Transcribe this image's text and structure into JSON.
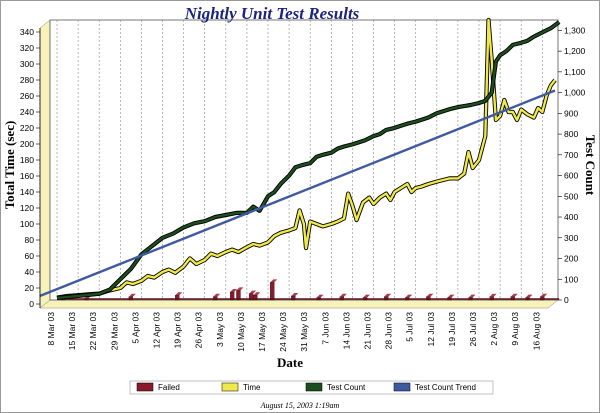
{
  "chart_data": {
    "type": "line",
    "title": "Nightly Unit Test Results",
    "xlabel": "Date",
    "ylabel_left": "Total Time (sec)",
    "ylabel_right": "Test Count",
    "ylim_left": [
      0,
      350
    ],
    "ylim_right": [
      0,
      1350
    ],
    "yticks_left": [
      0,
      20,
      40,
      60,
      80,
      100,
      120,
      140,
      160,
      180,
      200,
      220,
      240,
      260,
      280,
      300,
      320,
      340
    ],
    "yticks_right": [
      0,
      100,
      200,
      300,
      400,
      500,
      600,
      700,
      800,
      900,
      1000,
      1100,
      1200,
      1300
    ],
    "yticks_right_labels": [
      "0",
      "100",
      "200",
      "300",
      "400",
      "500",
      "600",
      "700",
      "800",
      "900",
      "1,000",
      "1,100",
      "1,200",
      "1,300"
    ],
    "x_categories": [
      "8 Mar 03",
      "15 Mar 03",
      "22 Mar 03",
      "29 Mar 03",
      "5 Apr 03",
      "12 Apr 03",
      "19 Apr 03",
      "26 Apr 03",
      "3 May 03",
      "10 May 03",
      "17 May 03",
      "24 May 03",
      "31 May 03",
      "7 Jun 03",
      "14 Jun 03",
      "21 Jun 03",
      "28 Jun 03",
      "5 Jul 03",
      "12 Jul 03",
      "19 Jul 03",
      "26 Jul 03",
      "2 Aug 03",
      "9 Aug 03",
      "16 Aug 03"
    ],
    "grid": true,
    "legend_position": "bottom",
    "series": [
      {
        "name": "Failed",
        "axis": "left",
        "kind": "bar",
        "color": "#8b1a2a",
        "points": [
          [
            0.3,
            3
          ],
          [
            1.4,
            2
          ],
          [
            3.5,
            4
          ],
          [
            5.7,
            6
          ],
          [
            7.5,
            4
          ],
          [
            8.3,
            10
          ],
          [
            8.6,
            12
          ],
          [
            9.2,
            8
          ],
          [
            9.4,
            6
          ],
          [
            10.2,
            22
          ],
          [
            11.2,
            5
          ],
          [
            12.4,
            3
          ],
          [
            13.5,
            4
          ],
          [
            14.6,
            3
          ],
          [
            15.6,
            4
          ],
          [
            16.6,
            3
          ],
          [
            17.6,
            4
          ],
          [
            18.6,
            3
          ],
          [
            19.6,
            3
          ],
          [
            20.6,
            4
          ],
          [
            21.6,
            4
          ],
          [
            22.3,
            3
          ],
          [
            23.0,
            4
          ]
        ]
      },
      {
        "name": "Time",
        "axis": "left",
        "kind": "line",
        "color": "#f0e94a",
        "points": [
          [
            0.0,
            3
          ],
          [
            0.5,
            5
          ],
          [
            1.0,
            6
          ],
          [
            1.5,
            7
          ],
          [
            2.0,
            8
          ],
          [
            2.5,
            12
          ],
          [
            3.0,
            15
          ],
          [
            3.3,
            22
          ],
          [
            3.6,
            20
          ],
          [
            4.0,
            24
          ],
          [
            4.3,
            30
          ],
          [
            4.6,
            28
          ],
          [
            5.0,
            35
          ],
          [
            5.3,
            38
          ],
          [
            5.6,
            34
          ],
          [
            6.0,
            42
          ],
          [
            6.3,
            52
          ],
          [
            6.6,
            45
          ],
          [
            7.0,
            50
          ],
          [
            7.3,
            58
          ],
          [
            7.6,
            55
          ],
          [
            8.0,
            60
          ],
          [
            8.3,
            63
          ],
          [
            8.6,
            60
          ],
          [
            9.0,
            66
          ],
          [
            9.3,
            70
          ],
          [
            9.6,
            68
          ],
          [
            10.0,
            72
          ],
          [
            10.3,
            80
          ],
          [
            10.6,
            84
          ],
          [
            11.0,
            87
          ],
          [
            11.3,
            90
          ],
          [
            11.5,
            112
          ],
          [
            11.7,
            95
          ],
          [
            11.8,
            65
          ],
          [
            12.0,
            98
          ],
          [
            12.3,
            95
          ],
          [
            12.6,
            92
          ],
          [
            13.0,
            95
          ],
          [
            13.3,
            98
          ],
          [
            13.6,
            102
          ],
          [
            13.8,
            133
          ],
          [
            14.0,
            118
          ],
          [
            14.2,
            100
          ],
          [
            14.5,
            122
          ],
          [
            14.8,
            128
          ],
          [
            15.0,
            120
          ],
          [
            15.3,
            128
          ],
          [
            15.6,
            133
          ],
          [
            15.8,
            125
          ],
          [
            16.0,
            135
          ],
          [
            16.3,
            140
          ],
          [
            16.6,
            145
          ],
          [
            16.8,
            135
          ],
          [
            17.0,
            140
          ],
          [
            17.3,
            142
          ],
          [
            17.6,
            145
          ],
          [
            18.0,
            148
          ],
          [
            18.3,
            150
          ],
          [
            18.6,
            152
          ],
          [
            19.0,
            152
          ],
          [
            19.3,
            158
          ],
          [
            19.5,
            185
          ],
          [
            19.7,
            165
          ],
          [
            20.0,
            175
          ],
          [
            20.3,
            205
          ],
          [
            20.45,
            350
          ],
          [
            20.6,
            300
          ],
          [
            20.8,
            225
          ],
          [
            21.0,
            230
          ],
          [
            21.2,
            250
          ],
          [
            21.4,
            235
          ],
          [
            21.6,
            235
          ],
          [
            21.8,
            225
          ],
          [
            22.0,
            238
          ],
          [
            22.3,
            232
          ],
          [
            22.6,
            228
          ],
          [
            22.8,
            240
          ],
          [
            23.0,
            235
          ],
          [
            23.2,
            255
          ],
          [
            23.4,
            268
          ],
          [
            23.6,
            275
          ]
        ]
      },
      {
        "name": "Test Count",
        "axis": "right",
        "kind": "line",
        "color": "#1e4d1e",
        "points": [
          [
            0.0,
            10
          ],
          [
            1.0,
            20
          ],
          [
            2.0,
            30
          ],
          [
            2.5,
            50
          ],
          [
            3.0,
            100
          ],
          [
            3.5,
            150
          ],
          [
            4.0,
            220
          ],
          [
            4.5,
            260
          ],
          [
            5.0,
            300
          ],
          [
            5.5,
            320
          ],
          [
            6.0,
            350
          ],
          [
            6.5,
            370
          ],
          [
            7.0,
            380
          ],
          [
            7.5,
            400
          ],
          [
            8.0,
            410
          ],
          [
            8.5,
            420
          ],
          [
            9.0,
            420
          ],
          [
            9.3,
            450
          ],
          [
            9.6,
            430
          ],
          [
            10.0,
            500
          ],
          [
            10.3,
            520
          ],
          [
            10.6,
            560
          ],
          [
            11.0,
            600
          ],
          [
            11.3,
            640
          ],
          [
            11.6,
            650
          ],
          [
            12.0,
            660
          ],
          [
            12.3,
            690
          ],
          [
            12.6,
            700
          ],
          [
            13.0,
            710
          ],
          [
            13.3,
            730
          ],
          [
            13.6,
            740
          ],
          [
            14.0,
            750
          ],
          [
            14.3,
            760
          ],
          [
            14.6,
            770
          ],
          [
            15.0,
            790
          ],
          [
            15.3,
            800
          ],
          [
            15.6,
            820
          ],
          [
            16.0,
            830
          ],
          [
            16.3,
            840
          ],
          [
            16.6,
            850
          ],
          [
            17.0,
            860
          ],
          [
            17.3,
            870
          ],
          [
            17.6,
            880
          ],
          [
            18.0,
            900
          ],
          [
            18.3,
            910
          ],
          [
            18.6,
            920
          ],
          [
            19.0,
            930
          ],
          [
            19.3,
            935
          ],
          [
            19.6,
            940
          ],
          [
            20.0,
            950
          ],
          [
            20.3,
            960
          ],
          [
            20.6,
            1000
          ],
          [
            20.8,
            1150
          ],
          [
            21.0,
            1180
          ],
          [
            21.3,
            1200
          ],
          [
            21.6,
            1230
          ],
          [
            22.0,
            1240
          ],
          [
            22.3,
            1250
          ],
          [
            22.6,
            1270
          ],
          [
            23.0,
            1290
          ],
          [
            23.4,
            1310
          ],
          [
            23.8,
            1340
          ]
        ]
      },
      {
        "name": "Test Count Trend",
        "axis": "right",
        "kind": "line",
        "color": "#3f5a9f",
        "points": [
          [
            -0.8,
            20
          ],
          [
            23.6,
            1010
          ]
        ]
      }
    ]
  },
  "footer_text": "August 15, 2003  1:19am"
}
